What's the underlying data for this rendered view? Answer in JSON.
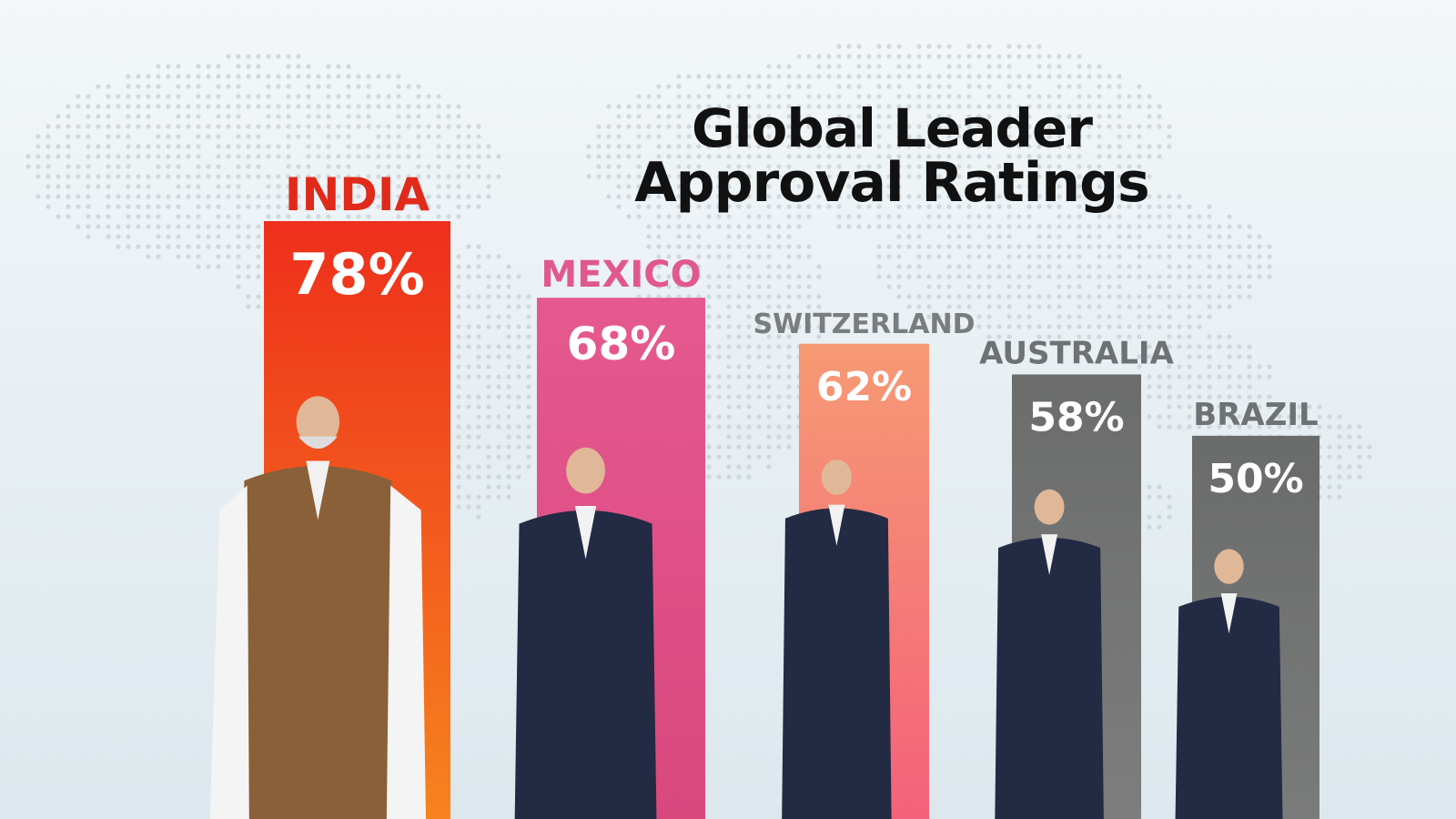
{
  "chart_data": {
    "type": "bar",
    "title": [
      "Global Leader",
      "Approval Ratings"
    ],
    "categories": [
      "INDIA",
      "MEXICO",
      "SWITZERLAND",
      "AUSTRALIA",
      "BRAZIL"
    ],
    "values": [
      78,
      68,
      62,
      58,
      50
    ],
    "value_labels": [
      "78%",
      "68%",
      "62%",
      "58%",
      "50%"
    ],
    "category_colors": [
      "#ef3a1c",
      "#e0558e",
      "#f67a62",
      "#717272",
      "#6d6e6e"
    ],
    "label_colors": [
      "#e02a1a",
      "#e0588e",
      "#7a7d80",
      "#6f7275",
      "#6f7275"
    ],
    "ylim": [
      0,
      100
    ],
    "grid": false,
    "legend": "none"
  }
}
